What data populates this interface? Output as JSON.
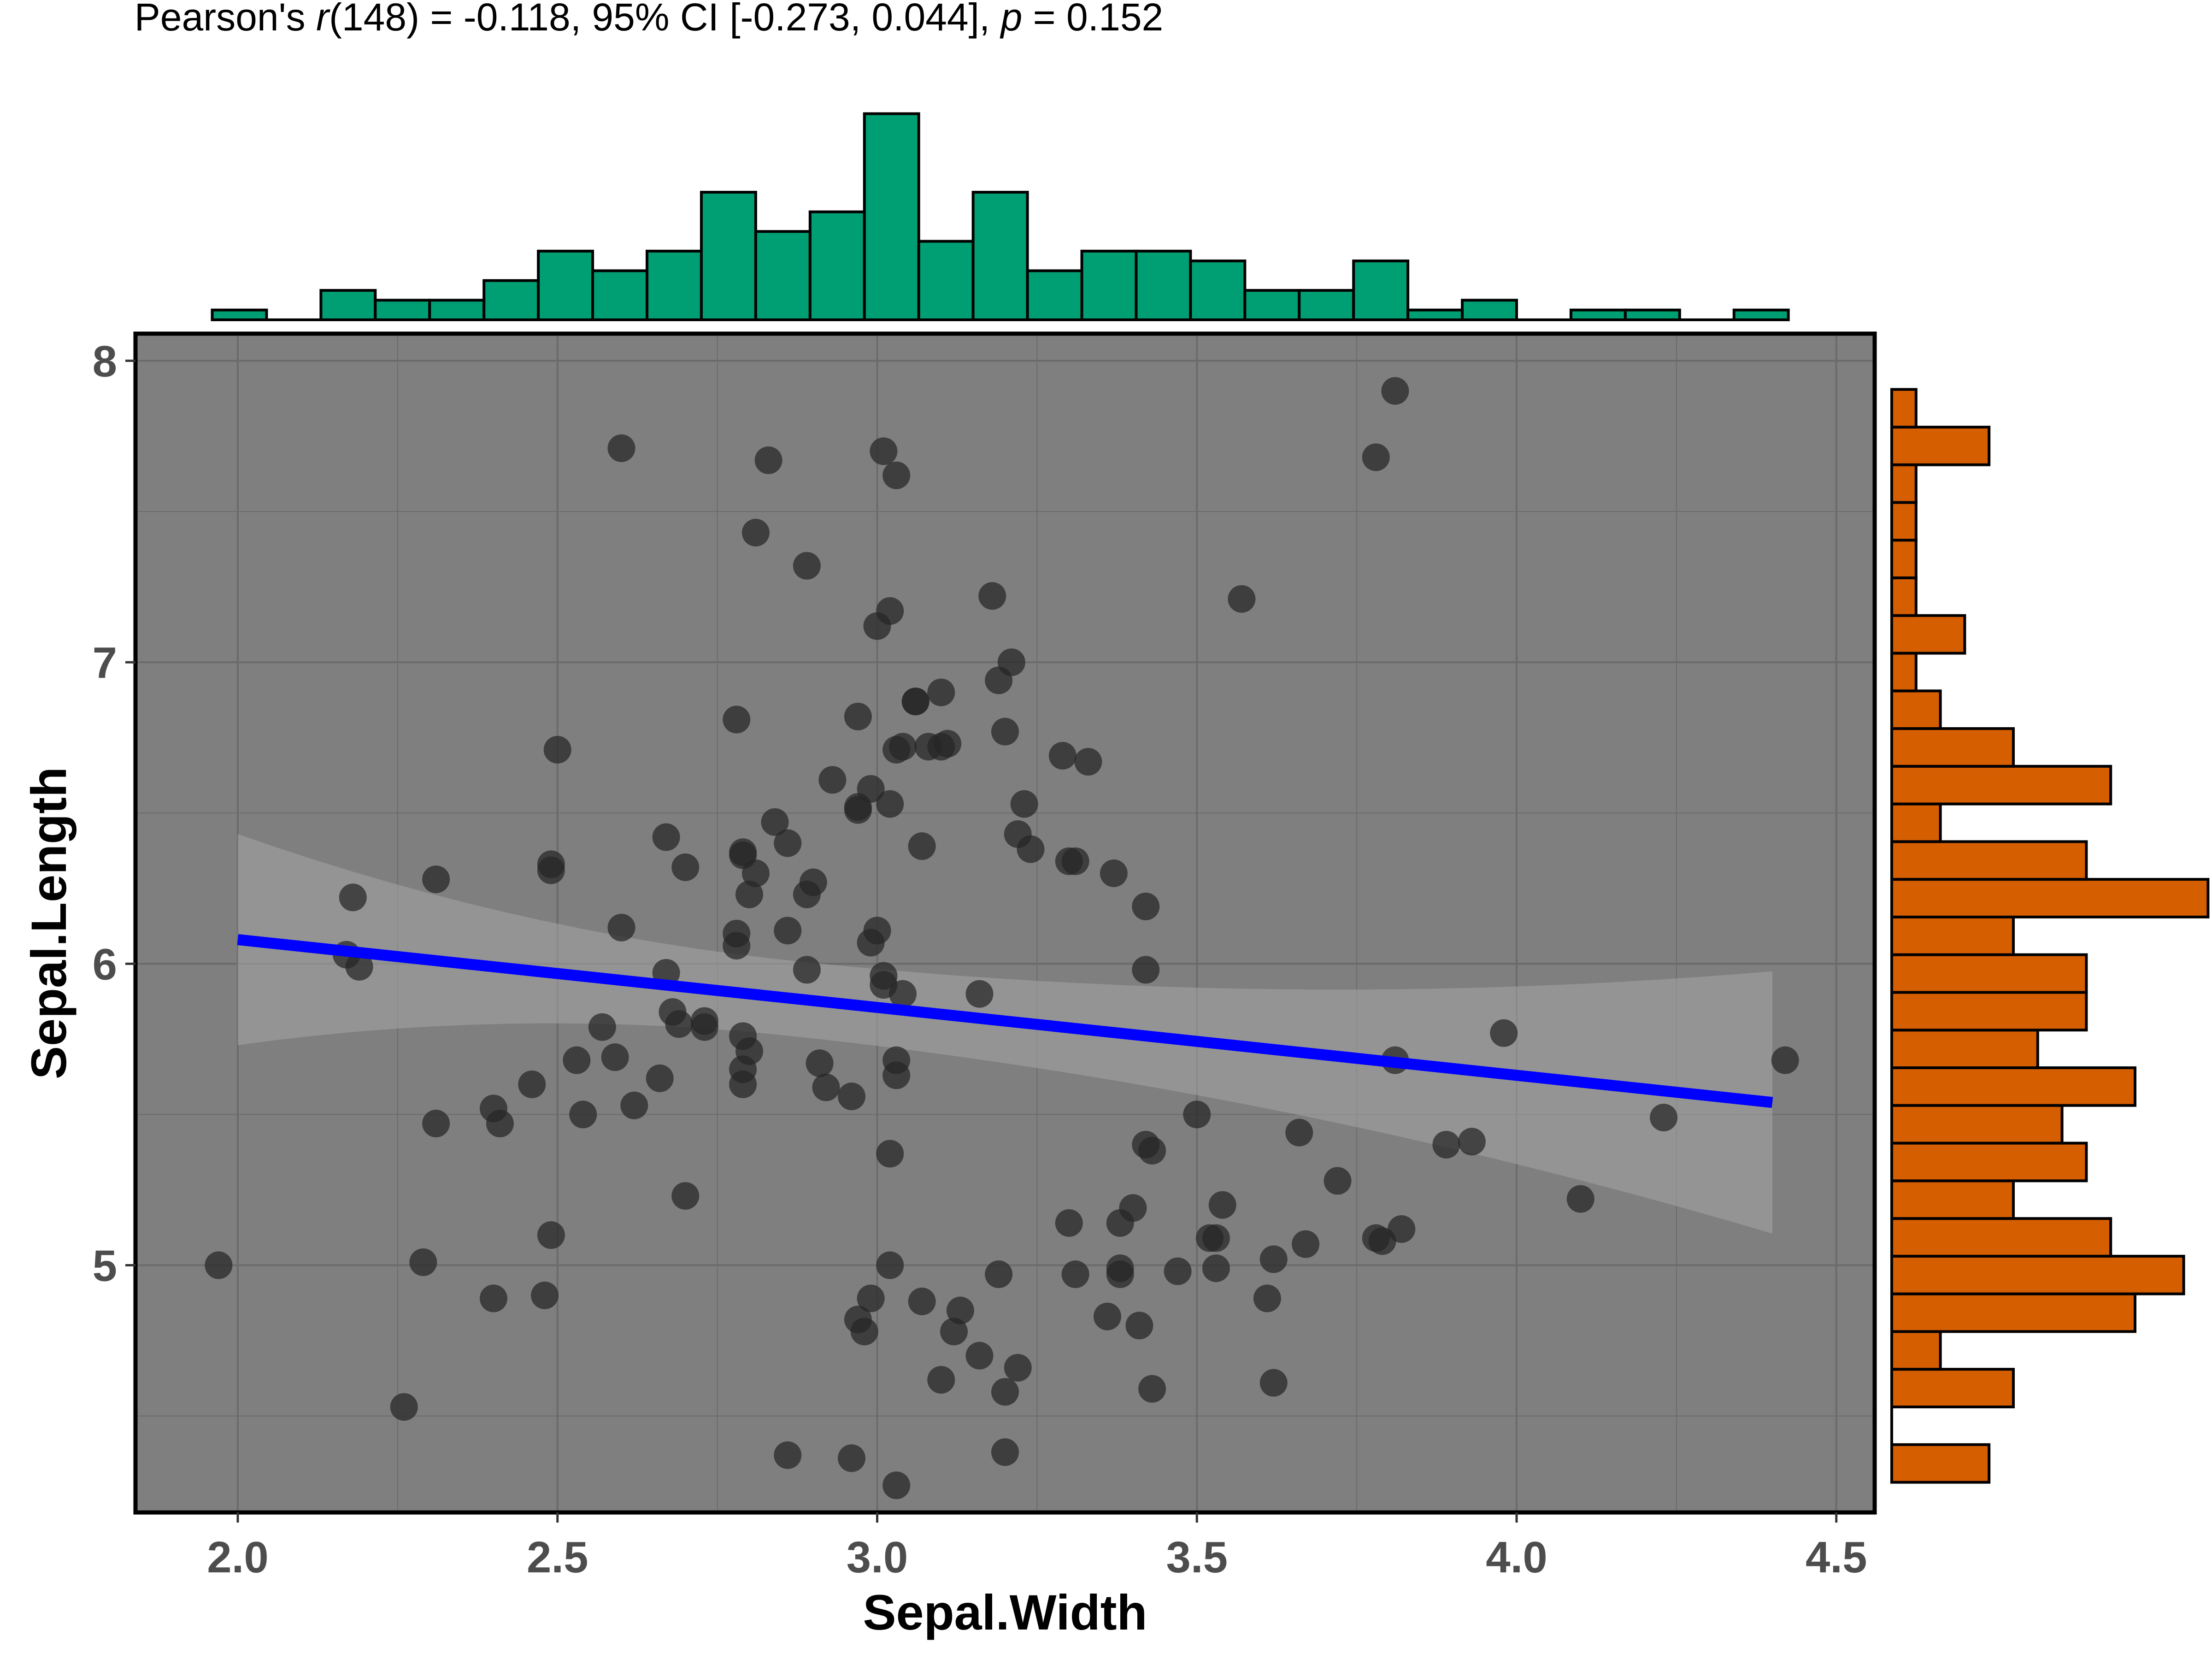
{
  "chart_data": {
    "type": "scatter",
    "subtitle_parts": {
      "prefix": "Pearson's ",
      "r": "r",
      "r_args": "(148) = -0.118, 95% CI [-0.273, 0.044], ",
      "p": "p",
      "p_value": " = 0.152"
    },
    "xlabel": "Sepal.Width",
    "ylabel": "Sepal.Length",
    "xlim": [
      1.84,
      4.56
    ],
    "ylim": [
      4.18,
      8.09
    ],
    "x_ticks": [
      "2.0",
      "2.5",
      "3.0",
      "3.5",
      "4.0",
      "4.5"
    ],
    "x_tick_values": [
      2.0,
      2.5,
      3.0,
      3.5,
      4.0,
      4.5
    ],
    "y_ticks": [
      "5",
      "6",
      "7",
      "8"
    ],
    "y_tick_values": [
      5,
      6,
      7,
      8
    ],
    "grid": true,
    "colors": {
      "panel": "#7f7f7f",
      "grid": "#6b6b6b",
      "points": "#262626",
      "regression_line": "#0000ff",
      "ci_band": "#a6a6a6",
      "x_histogram": "#009e73",
      "y_histogram": "#d55e00"
    },
    "regression": {
      "x": [
        2.0,
        4.4
      ],
      "y": [
        6.08,
        5.54
      ],
      "ci_lower": [
        5.73,
        5.11
      ],
      "ci_upper": [
        6.43,
        5.98
      ]
    },
    "points": [
      [
        1.97,
        5.0
      ],
      [
        2.18,
        6.22
      ],
      [
        2.17,
        6.03
      ],
      [
        2.19,
        5.99
      ],
      [
        2.26,
        4.53
      ],
      [
        2.29,
        5.01
      ],
      [
        2.31,
        6.28
      ],
      [
        2.31,
        5.47
      ],
      [
        2.4,
        5.52
      ],
      [
        2.4,
        4.89
      ],
      [
        2.41,
        5.47
      ],
      [
        2.46,
        5.6
      ],
      [
        2.48,
        4.9
      ],
      [
        2.49,
        5.1
      ],
      [
        2.49,
        6.33
      ],
      [
        2.49,
        6.31
      ],
      [
        2.5,
        6.71
      ],
      [
        2.53,
        5.68
      ],
      [
        2.54,
        5.5
      ],
      [
        2.57,
        5.79
      ],
      [
        2.59,
        5.69
      ],
      [
        2.6,
        6.12
      ],
      [
        2.6,
        7.71
      ],
      [
        2.62,
        5.53
      ],
      [
        2.66,
        5.62
      ],
      [
        2.67,
        5.97
      ],
      [
        2.67,
        6.42
      ],
      [
        2.68,
        5.84
      ],
      [
        2.69,
        5.8
      ],
      [
        2.7,
        6.32
      ],
      [
        2.7,
        5.23
      ],
      [
        2.73,
        5.79
      ],
      [
        2.73,
        5.81
      ],
      [
        2.78,
        6.81
      ],
      [
        2.78,
        6.1
      ],
      [
        2.78,
        6.06
      ],
      [
        2.79,
        6.37
      ],
      [
        2.79,
        6.36
      ],
      [
        2.79,
        5.76
      ],
      [
        2.79,
        5.6
      ],
      [
        2.79,
        5.65
      ],
      [
        2.8,
        5.71
      ],
      [
        2.8,
        6.23
      ],
      [
        2.81,
        7.43
      ],
      [
        2.81,
        6.3
      ],
      [
        2.83,
        7.67
      ],
      [
        2.84,
        6.47
      ],
      [
        2.86,
        6.4
      ],
      [
        2.86,
        6.11
      ],
      [
        2.86,
        4.37
      ],
      [
        2.89,
        7.32
      ],
      [
        2.89,
        5.98
      ],
      [
        2.89,
        6.23
      ],
      [
        2.9,
        6.27
      ],
      [
        2.91,
        5.67
      ],
      [
        2.92,
        5.59
      ],
      [
        2.93,
        6.61
      ],
      [
        2.96,
        5.56
      ],
      [
        2.96,
        4.36
      ],
      [
        2.97,
        6.82
      ],
      [
        2.97,
        6.52
      ],
      [
        2.97,
        6.51
      ],
      [
        2.97,
        4.82
      ],
      [
        2.98,
        4.78
      ],
      [
        2.99,
        6.58
      ],
      [
        2.99,
        6.07
      ],
      [
        2.99,
        4.89
      ],
      [
        3.0,
        7.12
      ],
      [
        3.0,
        6.11
      ],
      [
        3.01,
        7.7
      ],
      [
        3.01,
        5.96
      ],
      [
        3.01,
        5.93
      ],
      [
        3.02,
        7.17
      ],
      [
        3.02,
        5.37
      ],
      [
        3.02,
        5.0
      ],
      [
        3.02,
        6.53
      ],
      [
        3.03,
        7.62
      ],
      [
        3.03,
        6.71
      ],
      [
        3.03,
        5.63
      ],
      [
        3.03,
        5.68
      ],
      [
        3.03,
        4.27
      ],
      [
        3.04,
        6.72
      ],
      [
        3.04,
        5.9
      ],
      [
        3.06,
        6.87
      ],
      [
        3.06,
        6.87
      ],
      [
        3.07,
        6.39
      ],
      [
        3.07,
        4.88
      ],
      [
        3.08,
        6.72
      ],
      [
        3.1,
        6.72
      ],
      [
        3.1,
        6.9
      ],
      [
        3.1,
        4.62
      ],
      [
        3.11,
        6.73
      ],
      [
        3.12,
        4.78
      ],
      [
        3.13,
        4.85
      ],
      [
        3.16,
        4.7
      ],
      [
        3.16,
        5.9
      ],
      [
        3.18,
        7.22
      ],
      [
        3.19,
        6.94
      ],
      [
        3.19,
        4.97
      ],
      [
        3.2,
        4.58
      ],
      [
        3.2,
        4.38
      ],
      [
        3.2,
        6.77
      ],
      [
        3.21,
        7.0
      ],
      [
        3.22,
        6.43
      ],
      [
        3.22,
        4.66
      ],
      [
        3.23,
        6.53
      ],
      [
        3.24,
        6.38
      ],
      [
        3.29,
        6.69
      ],
      [
        3.3,
        6.34
      ],
      [
        3.31,
        6.34
      ],
      [
        3.3,
        5.14
      ],
      [
        3.31,
        4.97
      ],
      [
        3.33,
        6.67
      ],
      [
        3.36,
        4.83
      ],
      [
        3.37,
        6.3
      ],
      [
        3.38,
        5.14
      ],
      [
        3.38,
        4.99
      ],
      [
        3.38,
        4.97
      ],
      [
        3.4,
        5.19
      ],
      [
        3.41,
        4.8
      ],
      [
        3.42,
        6.19
      ],
      [
        3.42,
        5.98
      ],
      [
        3.42,
        5.4
      ],
      [
        3.43,
        5.38
      ],
      [
        3.43,
        4.59
      ],
      [
        3.47,
        4.98
      ],
      [
        3.5,
        5.5
      ],
      [
        3.52,
        5.09
      ],
      [
        3.53,
        5.09
      ],
      [
        3.53,
        4.99
      ],
      [
        3.54,
        5.2
      ],
      [
        3.57,
        7.21
      ],
      [
        3.61,
        4.89
      ],
      [
        3.62,
        4.61
      ],
      [
        3.62,
        5.02
      ],
      [
        3.66,
        5.44
      ],
      [
        3.67,
        5.07
      ],
      [
        3.72,
        5.28
      ],
      [
        3.78,
        7.68
      ],
      [
        3.78,
        5.09
      ],
      [
        3.79,
        5.08
      ],
      [
        3.81,
        7.9
      ],
      [
        3.81,
        5.68
      ],
      [
        3.82,
        5.12
      ],
      [
        3.89,
        5.4
      ],
      [
        3.93,
        5.41
      ],
      [
        3.98,
        5.77
      ],
      [
        4.1,
        5.22
      ],
      [
        4.23,
        5.49
      ],
      [
        4.42,
        5.68
      ]
    ],
    "x_histogram": {
      "bin_edges": [
        1.96,
        2.045,
        2.13,
        2.215,
        2.3,
        2.385,
        2.47,
        2.555,
        2.64,
        2.725,
        2.81,
        2.895,
        2.98,
        3.065,
        3.15,
        3.235,
        3.32,
        3.405,
        3.49,
        3.575,
        3.66,
        3.745,
        3.83,
        3.915,
        4.0,
        4.085,
        4.17,
        4.255,
        4.34,
        4.425
      ],
      "counts": [
        1,
        0,
        3,
        2,
        2,
        4,
        7,
        5,
        7,
        13,
        9,
        11,
        21,
        8,
        13,
        5,
        7,
        7,
        6,
        3,
        3,
        6,
        1,
        2,
        0,
        1,
        1,
        0,
        1
      ]
    },
    "y_histogram": {
      "bin_edges": [
        4.28,
        4.405,
        4.53,
        4.655,
        4.78,
        4.905,
        5.03,
        5.155,
        5.28,
        5.405,
        5.53,
        5.655,
        5.78,
        5.905,
        6.03,
        6.155,
        6.28,
        6.405,
        6.53,
        6.655,
        6.78,
        6.905,
        7.03,
        7.155,
        7.28,
        7.405,
        7.53,
        7.655,
        7.78,
        7.905
      ],
      "counts": [
        4,
        0,
        5,
        2,
        10,
        12,
        9,
        5,
        8,
        7,
        10,
        6,
        8,
        8,
        5,
        13,
        8,
        2,
        9,
        5,
        2,
        1,
        3,
        1,
        1,
        1,
        1,
        4,
        1
      ]
    }
  }
}
